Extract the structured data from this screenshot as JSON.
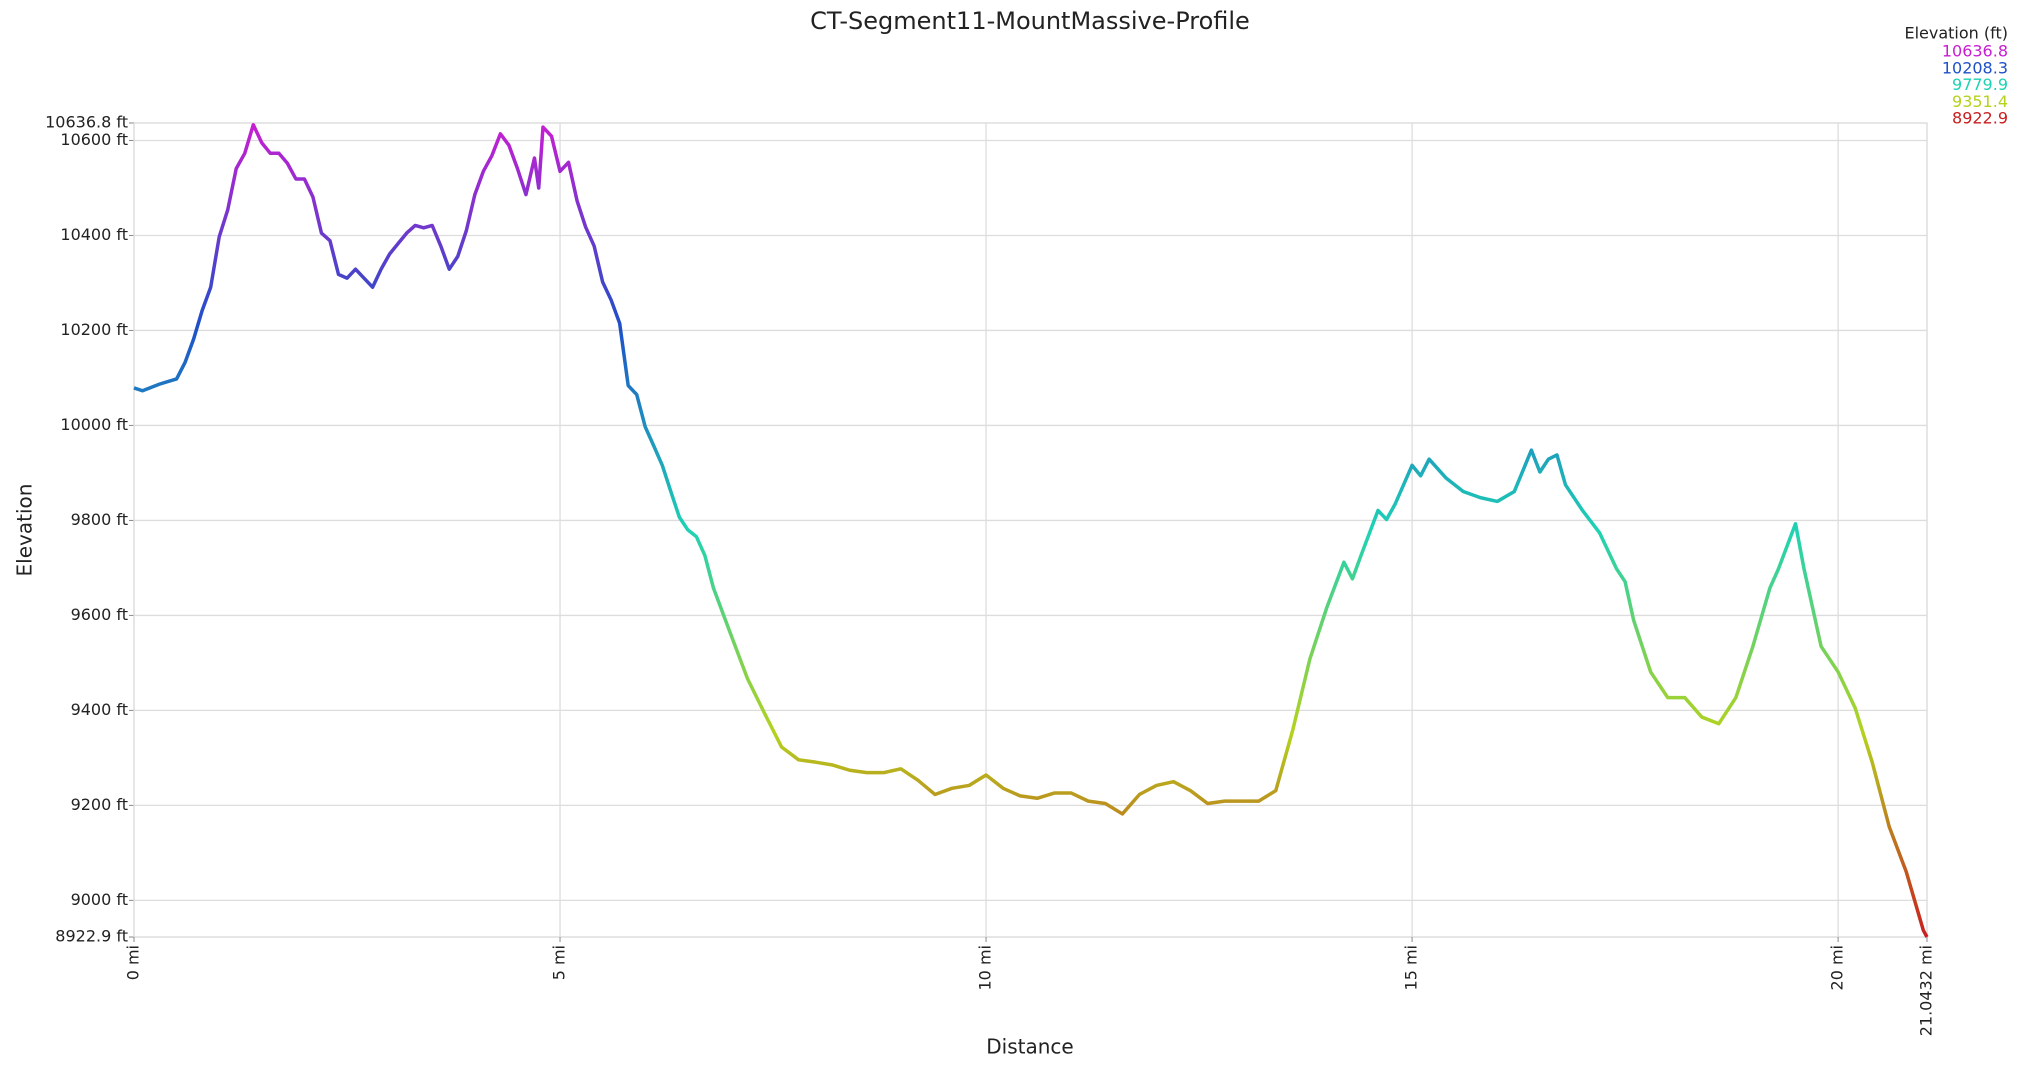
{
  "chart_data": {
    "type": "line",
    "title": "CT-Segment11-MountMassive-Profile",
    "x_label": "Distance",
    "y_label": "Elevation",
    "legend_title": "Elevation (ft)",
    "color_scale": [
      {
        "value": 10636.8,
        "color": "#c81ed2"
      },
      {
        "value": 10208.3,
        "color": "#1e50c8"
      },
      {
        "value": 9779.9,
        "color": "#1ed2b4"
      },
      {
        "value": 9351.4,
        "color": "#b4d21e"
      },
      {
        "value": 8922.9,
        "color": "#c81e1e"
      }
    ],
    "xlim": [
      0,
      21.0432
    ],
    "xticks": [
      {
        "value": 0,
        "label": "0 mi"
      },
      {
        "value": 5,
        "label": "5 mi"
      },
      {
        "value": 10,
        "label": "10 mi"
      },
      {
        "value": 15,
        "label": "15 mi"
      },
      {
        "value": 20,
        "label": "20 mi"
      },
      {
        "value": 21.0432,
        "label": "21.0432 mi"
      }
    ],
    "ylim": [
      8922.9,
      10636.8
    ],
    "yticks": [
      {
        "value": 8922.9,
        "label": "8922.9 ft"
      },
      {
        "value": 9000,
        "label": "9000 ft"
      },
      {
        "value": 9200,
        "label": "9200 ft"
      },
      {
        "value": 9400,
        "label": "9400 ft"
      },
      {
        "value": 9600,
        "label": "9600 ft"
      },
      {
        "value": 9800,
        "label": "9800 ft"
      },
      {
        "value": 10000,
        "label": "10000 ft"
      },
      {
        "value": 10200,
        "label": "10200 ft"
      },
      {
        "value": 10400,
        "label": "10400 ft"
      },
      {
        "value": 10600,
        "label": "10600 ft"
      },
      {
        "value": 10636.8,
        "label": "10636.8 ft"
      }
    ],
    "grid": true,
    "x": [
      0,
      0.1,
      0.3,
      0.5,
      0.6,
      0.7,
      0.8,
      0.9,
      1.0,
      1.1,
      1.2,
      1.3,
      1.4,
      1.5,
      1.6,
      1.7,
      1.8,
      1.9,
      2.0,
      2.1,
      2.2,
      2.3,
      2.4,
      2.5,
      2.6,
      2.7,
      2.8,
      2.9,
      3.0,
      3.1,
      3.2,
      3.3,
      3.4,
      3.5,
      3.6,
      3.7,
      3.8,
      3.9,
      4.0,
      4.1,
      4.2,
      4.3,
      4.4,
      4.5,
      4.6,
      4.7,
      4.75,
      4.8,
      4.9,
      5.0,
      5.1,
      5.2,
      5.3,
      5.4,
      5.5,
      5.6,
      5.7,
      5.8,
      5.9,
      6.0,
      6.1,
      6.2,
      6.3,
      6.4,
      6.5,
      6.6,
      6.7,
      6.8,
      7.0,
      7.2,
      7.4,
      7.6,
      7.8,
      8.0,
      8.2,
      8.4,
      8.6,
      8.8,
      9.0,
      9.2,
      9.4,
      9.6,
      9.8,
      10.0,
      10.2,
      10.4,
      10.6,
      10.8,
      11.0,
      11.2,
      11.4,
      11.6,
      11.8,
      12.0,
      12.2,
      12.4,
      12.6,
      12.8,
      13.0,
      13.2,
      13.4,
      13.6,
      13.8,
      14.0,
      14.2,
      14.3,
      14.4,
      14.6,
      14.7,
      14.8,
      15.0,
      15.1,
      15.2,
      15.4,
      15.6,
      15.8,
      16.0,
      16.2,
      16.4,
      16.5,
      16.6,
      16.7,
      16.8,
      17.0,
      17.2,
      17.4,
      17.5,
      17.6,
      17.8,
      18.0,
      18.2,
      18.4,
      18.6,
      18.8,
      19.0,
      19.2,
      19.3,
      19.5,
      19.6,
      19.8,
      20.0,
      20.2,
      20.4,
      20.6,
      20.8,
      21.0,
      21.0432
    ],
    "values": [
      10079,
      10073,
      10087,
      10098,
      10133,
      10182,
      10242,
      10291,
      10397,
      10454,
      10541,
      10573,
      10633,
      10595,
      10573,
      10573,
      10552,
      10519,
      10519,
      10481,
      10405,
      10389,
      10318,
      10310,
      10329,
      10310,
      10291,
      10329,
      10361,
      10383,
      10405,
      10421,
      10416,
      10421,
      10378,
      10329,
      10356,
      10410,
      10486,
      10535,
      10568,
      10614,
      10590,
      10541,
      10486,
      10563,
      10500,
      10628,
      10609,
      10535,
      10554,
      10473,
      10418,
      10378,
      10302,
      10264,
      10215,
      10084,
      10065,
      9997,
      9957,
      9916,
      9861,
      9807,
      9780,
      9766,
      9726,
      9658,
      9562,
      9467,
      9394,
      9323,
      9296,
      9291,
      9285,
      9274,
      9269,
      9269,
      9277,
      9253,
      9223,
      9236,
      9242,
      9264,
      9236,
      9220,
      9215,
      9226,
      9226,
      9209,
      9204,
      9182,
      9223,
      9242,
      9250,
      9231,
      9204,
      9209,
      9209,
      9209,
      9231,
      9359,
      9508,
      9617,
      9712,
      9677,
      9726,
      9821,
      9802,
      9834,
      9916,
      9894,
      9929,
      9889,
      9861,
      9848,
      9840,
      9861,
      9948,
      9902,
      9929,
      9938,
      9875,
      9821,
      9774,
      9698,
      9671,
      9590,
      9481,
      9427,
      9427,
      9386,
      9372,
      9427,
      9535,
      9658,
      9698,
      9793,
      9698,
      9535,
      9481,
      9405,
      9291,
      9155,
      9060,
      8937,
      8922.9
    ]
  }
}
